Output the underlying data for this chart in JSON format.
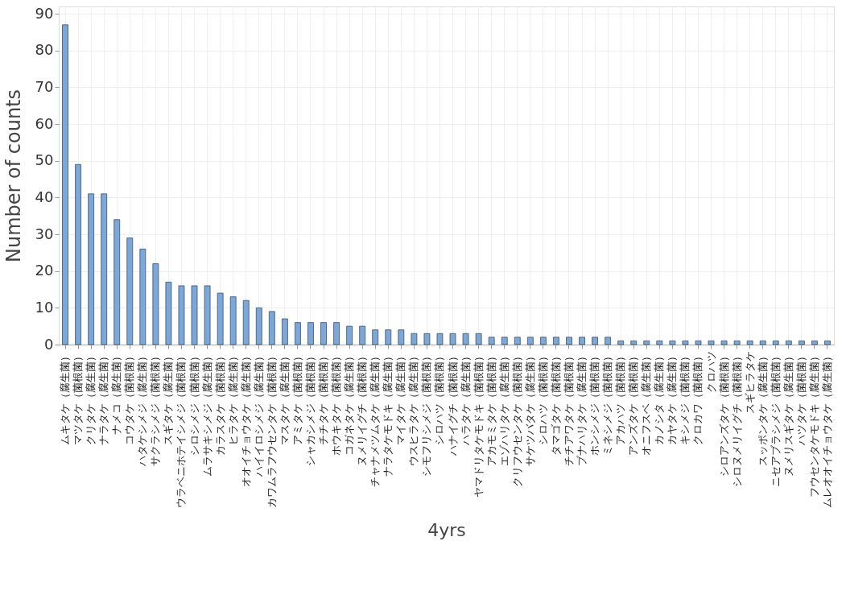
{
  "chart_data": {
    "type": "bar",
    "xlabel": "4yrs",
    "ylabel": "Number of counts",
    "categories": [
      "ムキタケ（腐生菌）",
      "マツタケ（菌根菌）",
      "クリタケ（腐生菌）",
      "ナラタケ（腐生菌）",
      "ナメコ（腐生菌）",
      "コウタケ（菌根菌）",
      "ハタケシメジ（腐生菌）",
      "サクラシメジ（菌根菌）",
      "スギタケ（腐生菌）",
      "ウラベニホテイシメジ（菌根菌）",
      "シロシメジ（菌根菌）",
      "ムラサキシメジ（腐生菌）",
      "カラスタケ（菌根菌）",
      "ヒラタケ（腐生菌）",
      "オオイチョウタケ（腐生菌）",
      "ハイイロシメジ（腐生菌）",
      "カワムラフウセンタケ（菌根菌）",
      "マスタケ（腐生菌）",
      "アミタケ（菌根菌）",
      "シャカシメジ（菌根菌）",
      "チチタケ（菌根菌）",
      "ホウキタケ（菌根菌）",
      "コガネタケ（腐生菌）",
      "ヌメリイグチ（菌根菌）",
      "チャナメツムタケ（腐生菌）",
      "ナラタケモドキ（腐生菌）",
      "マイタケ（腐生菌）",
      "ウスヒラタケ（腐生菌）",
      "シモフリシメジ（菌根菌）",
      "シロハツ（菌根菌）",
      "ハナイグチ（菌根菌）",
      "ハラタケ（腐生菌）",
      "ヤマドリタケモドキ（菌根菌）",
      "アカモミタケ（菌根菌）",
      "エゾハリタケ（腐生菌）",
      "クリフウセンタケ（菌根菌）",
      "サケツバタケ（腐生菌）",
      "シロハツ（菌根菌）",
      "タマゴタケ（菌根菌）",
      "チチアワタケ（菌根菌）",
      "ブナハリタケ（腐生菌）",
      "ホンシメジ（菌根菌）",
      "ミネシメジ（菌根菌）",
      "アカハツ（菌根菌）",
      "アンズタケ（菌根菌）",
      "オニフスベ（腐生菌）",
      "カノシタ（腐生菌）",
      "カヤタケ（腐生菌）",
      "キシメジ（菌根菌）",
      "クロカワ（菌根菌）",
      "クロハツ",
      "シロアンズタケ（菌根菌）",
      "シロヌメリイグチ（菌根菌）",
      "スギヒラタケ",
      "スッポンタケ（腐生菌）",
      "ニセアブラシメジ（菌根菌）",
      "ヌメリスギタケ（腐生菌）",
      "ハツタケ（菌根菌）",
      "フウセンタケモドキ（腐生菌）",
      "ムレオオイチョウタケ（腐生菌）"
    ],
    "values": [
      87,
      49,
      41,
      41,
      34,
      29,
      26,
      22,
      17,
      16,
      16,
      16,
      14,
      13,
      12,
      10,
      9,
      7,
      6,
      6,
      6,
      6,
      5,
      5,
      4,
      4,
      4,
      3,
      3,
      3,
      3,
      3,
      3,
      2,
      2,
      2,
      2,
      2,
      2,
      2,
      2,
      2,
      2,
      1,
      1,
      1,
      1,
      1,
      1,
      1,
      1,
      1,
      1,
      1,
      1,
      1,
      1,
      1,
      1,
      1
    ],
    "color": "#7ba7d9",
    "ylim": [
      0,
      92
    ],
    "yticks": [
      0,
      10,
      20,
      30,
      40,
      50,
      60,
      70,
      80,
      90
    ],
    "grid": true
  }
}
